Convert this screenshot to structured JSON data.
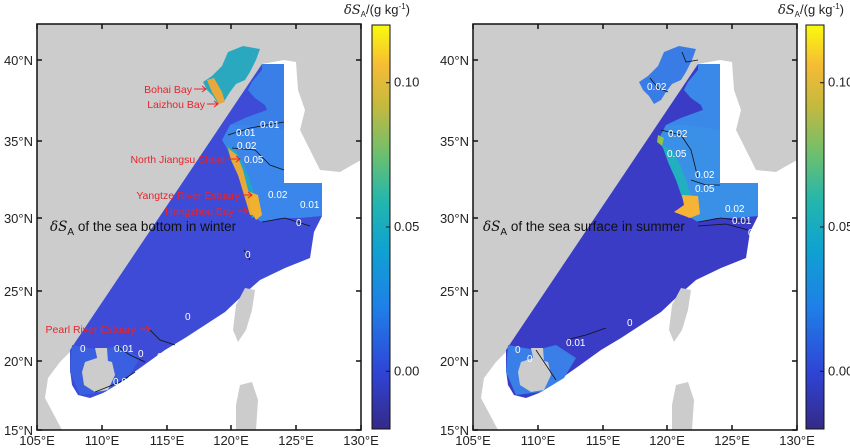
{
  "colorbar": {
    "label": "δS",
    "label_sub": "A",
    "label_unit": "/(g kg",
    "label_sup": "-1",
    "label_close": ")",
    "range": [
      -0.02,
      0.12
    ],
    "ticks": [
      "0.10",
      "0.05",
      "0.00"
    ],
    "colormap": "parula"
  },
  "axes": {
    "lon_ticks": [
      "105°E",
      "110°E",
      "115°E",
      "120°E",
      "125°E",
      "130°E"
    ],
    "lat_ticks": [
      "15°N",
      "20°N",
      "25°N",
      "30°N",
      "35°N",
      "40°N"
    ]
  },
  "left_map": {
    "title_symbol": "δS",
    "title_sub": "A",
    "title_text": " of the sea bottom in winter",
    "annotations": [
      "Bohai Bay",
      "Laizhou Bay",
      "North Jiangsu Shoal",
      "Yangtze River Estuary",
      "Hangzhou Bay",
      "Pearl River Estuary"
    ],
    "contour_labels": [
      "0.01",
      "0.01",
      "0.02",
      "0.05",
      "0.02",
      "0.01",
      "0",
      "0",
      "0",
      "0",
      "0.01",
      "0",
      "0",
      "0.01"
    ]
  },
  "right_map": {
    "title_symbol": "δS",
    "title_sub": "A",
    "title_text": " of the sea surface in summer",
    "contour_labels": [
      "0.02",
      "0.02",
      "0.05",
      "0.02",
      "0.05",
      "0.02",
      "0.01",
      "0",
      "0",
      "0.01",
      "0",
      "0",
      "0"
    ]
  },
  "colors": {
    "land": "#cccccc",
    "ocean_outside": "#ffffff",
    "annotation": "#e8242b"
  }
}
